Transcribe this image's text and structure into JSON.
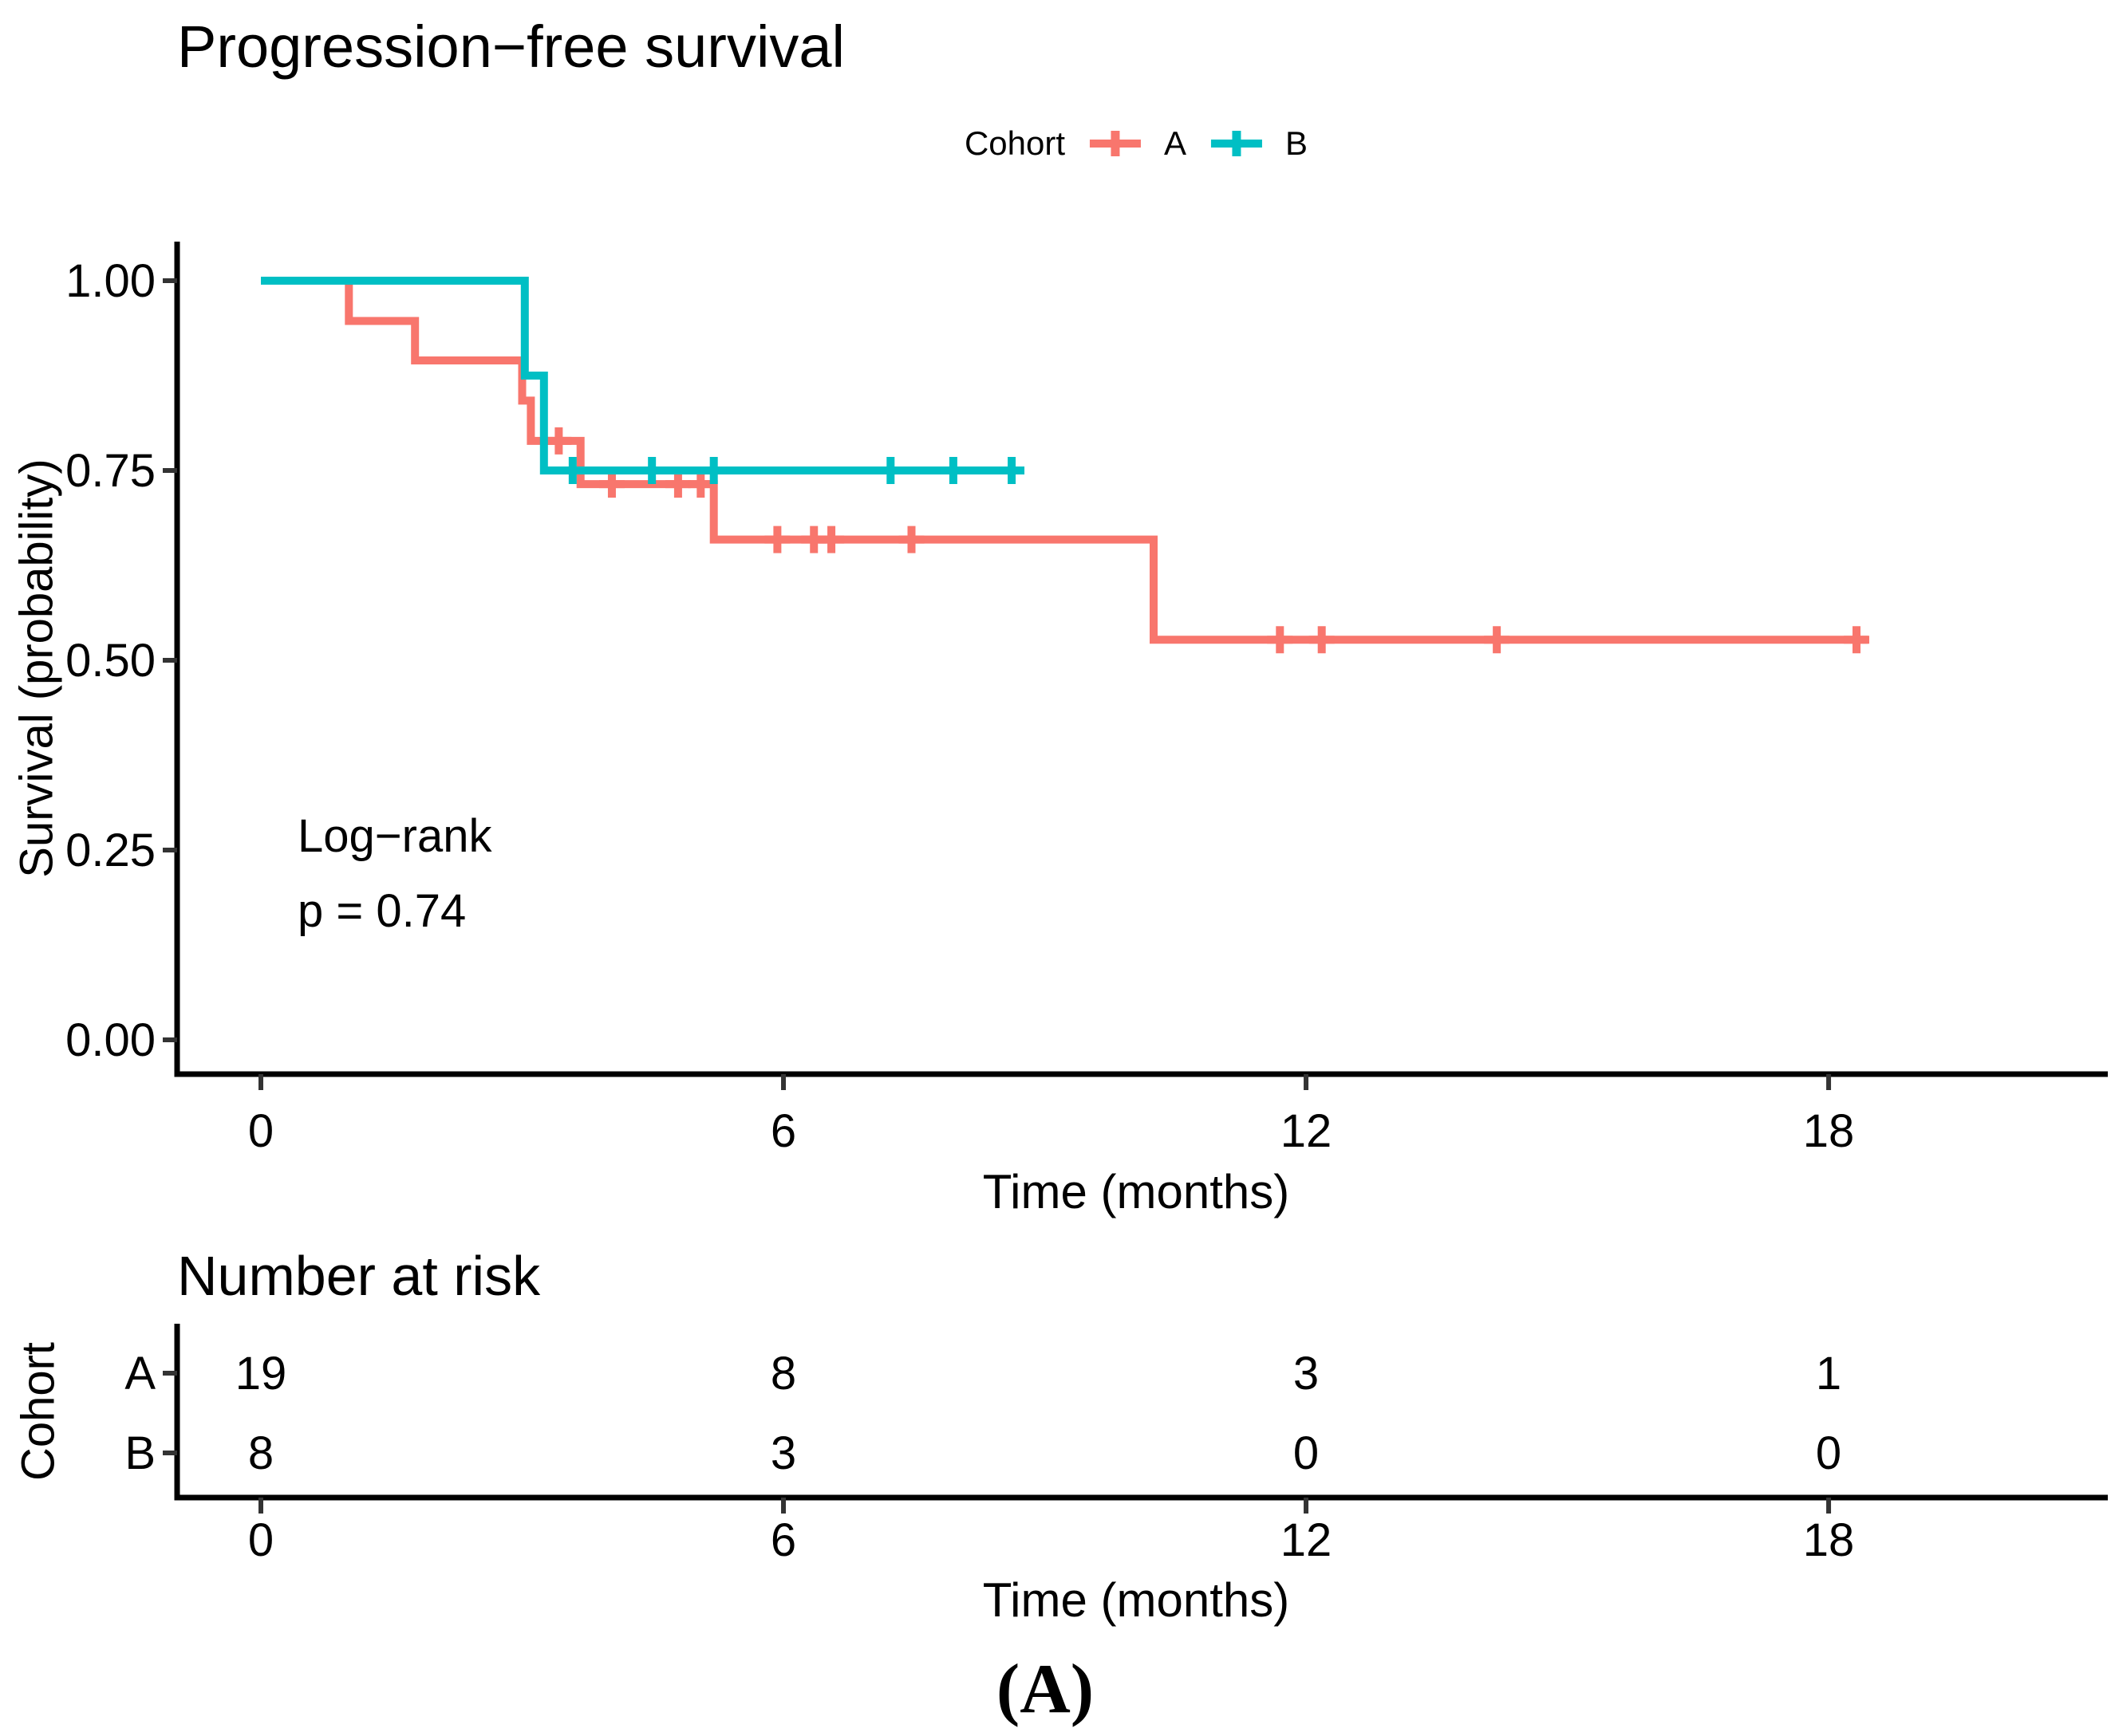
{
  "figure": {
    "caption": "(A)"
  },
  "legend": {
    "title": "Cohort",
    "items": [
      {
        "label": "A",
        "color": "#F8766D"
      },
      {
        "label": "B",
        "color": "#00BFC4"
      }
    ]
  },
  "chart_data": {
    "type": "line",
    "subtype": "kaplan-meier-step-curve",
    "title": "Progression−free survival",
    "xlabel": "Time (months)",
    "ylabel": "Survival (probability)",
    "xlim": [
      0,
      21.2
    ],
    "ylim": [
      0.0,
      1.0
    ],
    "x_ticks": [
      0,
      6,
      12,
      18
    ],
    "y_ticks": [
      "1.00",
      "0.75",
      "0.50",
      "0.25",
      "0.00"
    ],
    "grid": false,
    "legend_position": "top-center",
    "pvalue": {
      "line1": "Log−rank",
      "line2": "p = 0.74"
    },
    "series": [
      {
        "name": "A",
        "color": "#F8766D",
        "n_total": 19,
        "steps": [
          [
            0,
            1.0
          ],
          [
            1.01,
            0.947
          ],
          [
            1.77,
            0.895
          ],
          [
            3.0,
            0.842
          ],
          [
            3.1,
            0.789
          ],
          [
            3.67,
            0.732
          ],
          [
            5.2,
            0.659
          ],
          [
            10.25,
            0.527
          ]
        ],
        "end_time": 18.45,
        "censors": [
          [
            3.42,
            0.789
          ],
          [
            4.03,
            0.732
          ],
          [
            4.79,
            0.732
          ],
          [
            5.05,
            0.732
          ],
          [
            5.93,
            0.659
          ],
          [
            6.35,
            0.659
          ],
          [
            6.55,
            0.659
          ],
          [
            7.47,
            0.659
          ],
          [
            11.7,
            0.527
          ],
          [
            12.18,
            0.527
          ],
          [
            14.19,
            0.527
          ],
          [
            18.32,
            0.527
          ]
        ]
      },
      {
        "name": "B",
        "color": "#00BFC4",
        "n_total": 8,
        "steps": [
          [
            0,
            1.0
          ],
          [
            3.03,
            0.875
          ],
          [
            3.25,
            0.75
          ]
        ],
        "end_time": 8.75,
        "censors": [
          [
            3.58,
            0.75
          ],
          [
            4.49,
            0.75
          ],
          [
            5.2,
            0.75
          ],
          [
            7.23,
            0.75
          ],
          [
            7.95,
            0.75
          ],
          [
            8.62,
            0.75
          ]
        ]
      }
    ]
  },
  "risk_table": {
    "title": "Number at risk",
    "y_label": "Cohort",
    "x_label": "Time (months)",
    "x_ticks": [
      0,
      6,
      12,
      18
    ],
    "rows": [
      {
        "label": "A",
        "color": "#F8766D",
        "values": [
          "19",
          "8",
          "3",
          "1"
        ]
      },
      {
        "label": "B",
        "color": "#00BFC4",
        "values": [
          "8",
          "3",
          "0",
          "0"
        ]
      }
    ]
  },
  "style": {
    "axis_color": "#000000",
    "tick_color": "#333333"
  }
}
